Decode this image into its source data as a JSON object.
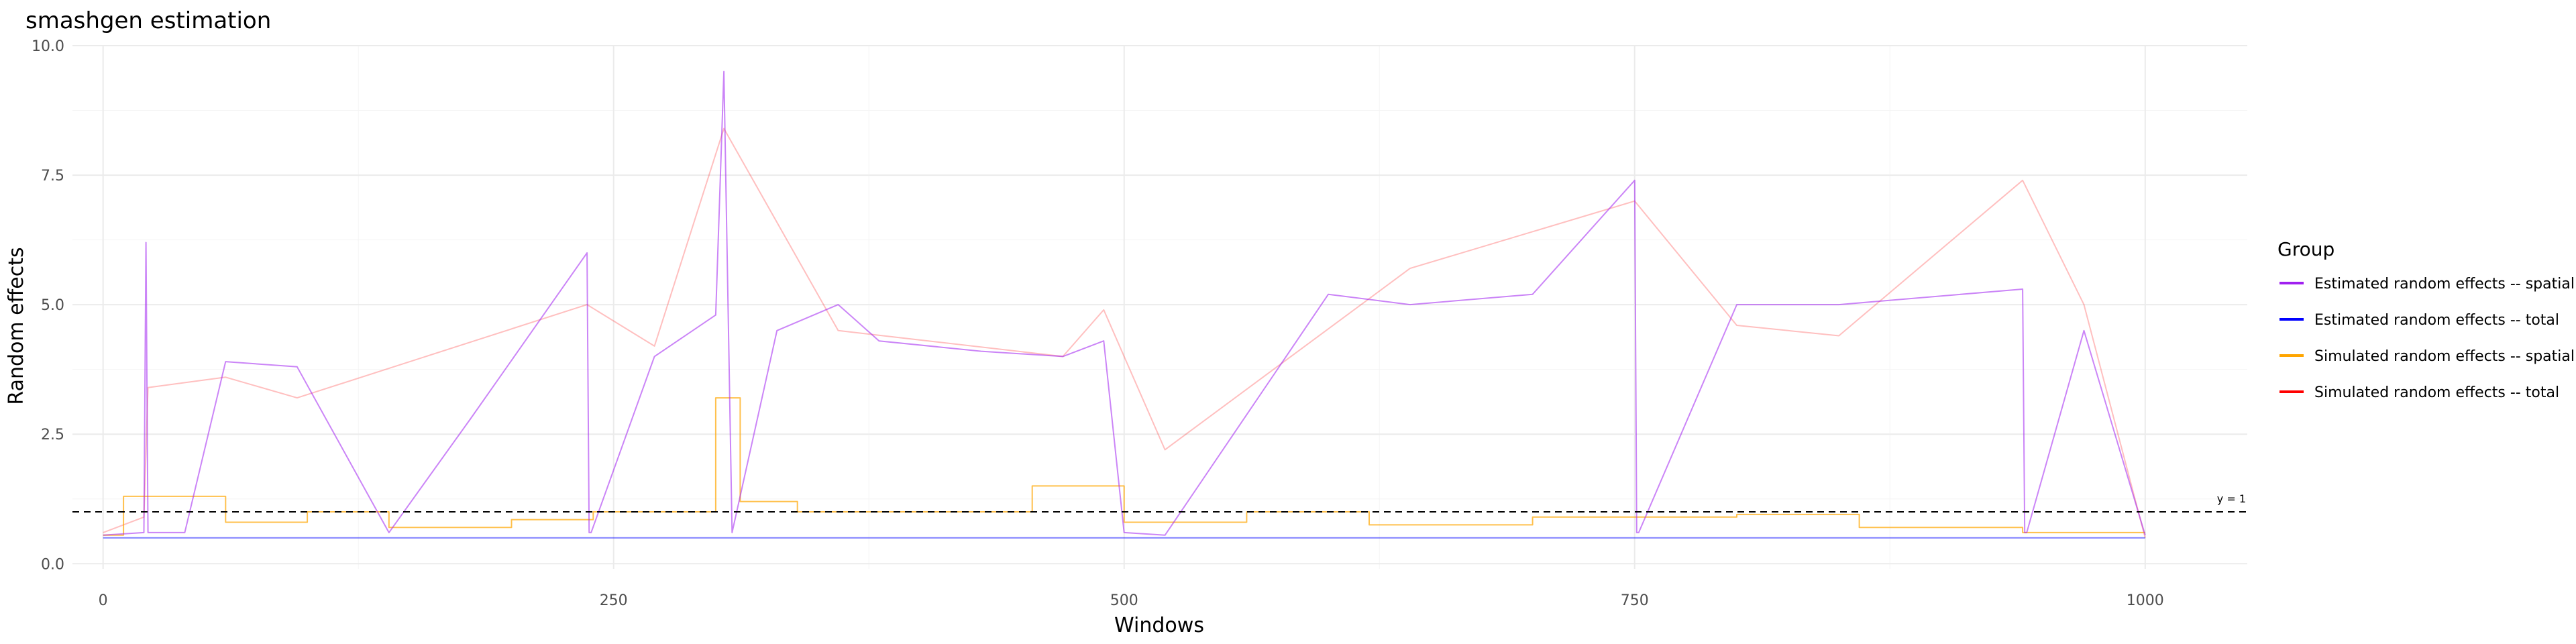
{
  "chart_data": {
    "type": "line",
    "title": "smashgen estimation",
    "xlabel": "Windows",
    "ylabel": "Random effects",
    "xlim": [
      -15,
      1050
    ],
    "ylim": [
      -0.1,
      10.0
    ],
    "x_ticks": [
      0,
      250,
      500,
      750,
      1000
    ],
    "x_tick_labels": [
      "0",
      "250",
      "500",
      "750",
      "1000"
    ],
    "y_ticks": [
      0.0,
      2.5,
      5.0,
      7.5,
      10.0
    ],
    "y_tick_labels": [
      "0.0",
      "2.5",
      "5.0",
      "7.5",
      "10.0"
    ],
    "grid": true,
    "legend": {
      "title": "Group",
      "position": "right"
    },
    "hline": {
      "y": 1,
      "style": "dashed",
      "label": "y = 1"
    },
    "series": [
      {
        "name": "Estimated random effects -- spatial",
        "color": "#a020f0",
        "x": [
          0,
          20,
          21,
          22,
          40,
          60,
          95,
          140,
          180,
          237,
          238,
          239,
          270,
          300,
          304,
          308,
          330,
          360,
          380,
          430,
          470,
          490,
          500,
          520,
          600,
          640,
          700,
          750,
          751,
          752,
          800,
          850,
          940,
          941,
          942,
          970,
          1000
        ],
        "y": [
          0.55,
          0.6,
          6.2,
          0.6,
          0.6,
          3.9,
          3.8,
          0.6,
          2.8,
          6.0,
          0.6,
          0.6,
          4.0,
          4.8,
          9.5,
          0.6,
          4.5,
          5.0,
          4.3,
          4.1,
          4.0,
          4.3,
          0.6,
          0.55,
          5.2,
          5.0,
          5.2,
          7.4,
          0.6,
          0.6,
          5.0,
          5.0,
          5.3,
          0.6,
          0.6,
          4.5,
          0.55
        ]
      },
      {
        "name": "Estimated random effects -- total",
        "color": "#0000ff",
        "x": [
          0,
          1000
        ],
        "y": [
          0.5,
          0.5
        ]
      },
      {
        "name": "Simulated random effects -- spatial",
        "color": "#ffa500",
        "x": [
          0,
          10,
          10,
          60,
          60,
          100,
          100,
          140,
          140,
          200,
          200,
          240,
          240,
          300,
          300,
          312,
          312,
          340,
          340,
          455,
          455,
          500,
          500,
          560,
          560,
          620,
          620,
          700,
          700,
          800,
          800,
          860,
          860,
          940,
          940,
          1000
        ],
        "y": [
          0.55,
          0.55,
          1.3,
          1.3,
          0.8,
          0.8,
          1.0,
          1.0,
          0.7,
          0.7,
          0.85,
          0.85,
          1.0,
          1.0,
          3.2,
          3.2,
          1.2,
          1.2,
          1.0,
          1.0,
          1.5,
          1.5,
          0.8,
          0.8,
          1.0,
          1.0,
          0.75,
          0.75,
          0.9,
          0.9,
          0.95,
          0.95,
          0.7,
          0.7,
          0.6,
          0.6
        ]
      },
      {
        "name": "Simulated random effects -- total",
        "color": "#ff0000",
        "x": [
          0,
          20,
          22,
          60,
          95,
          237,
          270,
          304,
          360,
          470,
          490,
          520,
          640,
          750,
          800,
          850,
          940,
          970,
          1000
        ],
        "y": [
          0.6,
          0.9,
          3.4,
          3.6,
          3.2,
          5.0,
          4.2,
          8.4,
          4.5,
          4.0,
          4.9,
          2.2,
          5.7,
          7.0,
          4.6,
          4.4,
          7.4,
          5.0,
          0.5
        ]
      }
    ]
  }
}
